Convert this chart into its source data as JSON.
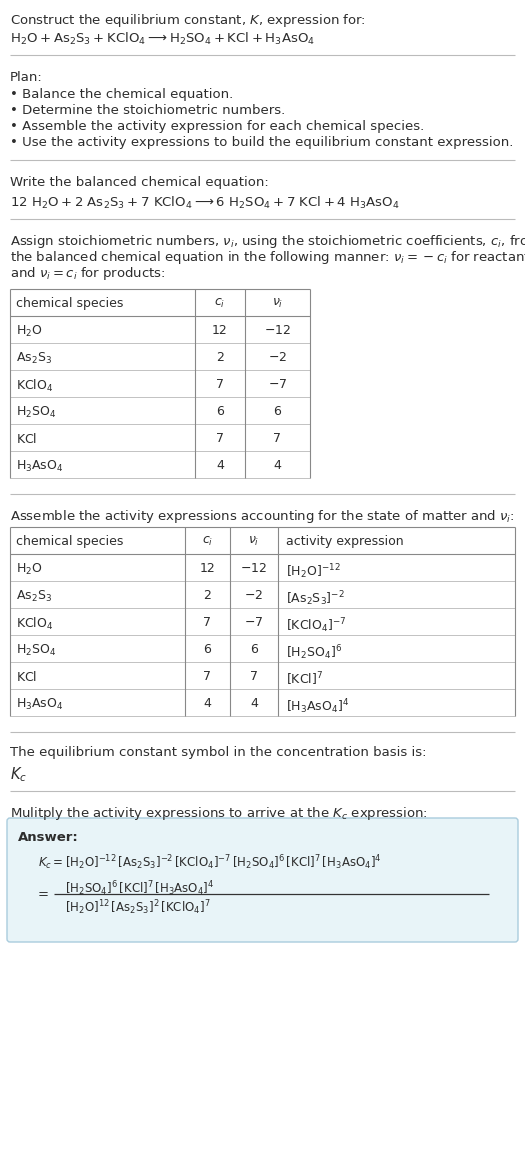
{
  "bg_color": "#ffffff",
  "text_color": "#2d2d2d",
  "title_line1": "Construct the equilibrium constant, $K$, expression for:",
  "title_line2": "$\\mathrm{H_2O + As_2S_3 + KClO_4 \\longrightarrow H_2SO_4 + KCl + H_3AsO_4}$",
  "plan_header": "Plan:",
  "plan_items": [
    "• Balance the chemical equation.",
    "• Determine the stoichiometric numbers.",
    "• Assemble the activity expression for each chemical species.",
    "• Use the activity expressions to build the equilibrium constant expression."
  ],
  "balanced_header": "Write the balanced chemical equation:",
  "balanced_eq": "$\\mathrm{12\\ H_2O + 2\\ As_2S_3 + 7\\ KClO_4 \\longrightarrow 6\\ H_2SO_4 + 7\\ KCl + 4\\ H_3AsO_4}$",
  "stoich_lines": [
    "Assign stoichiometric numbers, $\\nu_i$, using the stoichiometric coefficients, $c_i$, from",
    "the balanced chemical equation in the following manner: $\\nu_i = -c_i$ for reactants",
    "and $\\nu_i = c_i$ for products:"
  ],
  "table1_headers": [
    "chemical species",
    "$c_i$",
    "$\\nu_i$"
  ],
  "table1_rows": [
    [
      "$\\mathrm{H_2O}$",
      "12",
      "$-12$"
    ],
    [
      "$\\mathrm{As_2S_3}$",
      "2",
      "$-2$"
    ],
    [
      "$\\mathrm{KClO_4}$",
      "7",
      "$-7$"
    ],
    [
      "$\\mathrm{H_2SO_4}$",
      "6",
      "6"
    ],
    [
      "$\\mathrm{KCl}$",
      "7",
      "7"
    ],
    [
      "$\\mathrm{H_3AsO_4}$",
      "4",
      "4"
    ]
  ],
  "activity_header": "Assemble the activity expressions accounting for the state of matter and $\\nu_i$:",
  "table2_headers": [
    "chemical species",
    "$c_i$",
    "$\\nu_i$",
    "activity expression"
  ],
  "table2_rows": [
    [
      "$\\mathrm{H_2O}$",
      "12",
      "$-12$",
      "$[\\mathrm{H_2O}]^{-12}$"
    ],
    [
      "$\\mathrm{As_2S_3}$",
      "2",
      "$-2$",
      "$[\\mathrm{As_2S_3}]^{-2}$"
    ],
    [
      "$\\mathrm{KClO_4}$",
      "7",
      "$-7$",
      "$[\\mathrm{KClO_4}]^{-7}$"
    ],
    [
      "$\\mathrm{H_2SO_4}$",
      "6",
      "6",
      "$[\\mathrm{H_2SO_4}]^{6}$"
    ],
    [
      "$\\mathrm{KCl}$",
      "7",
      "7",
      "$[\\mathrm{KCl}]^{7}$"
    ],
    [
      "$\\mathrm{H_3AsO_4}$",
      "4",
      "4",
      "$[\\mathrm{H_3AsO_4}]^{4}$"
    ]
  ],
  "kc_header": "The equilibrium constant symbol in the concentration basis is:",
  "kc_symbol": "$K_c$",
  "multiply_header": "Mulitply the activity expressions to arrive at the $K_c$ expression:",
  "answer_label": "Answer:",
  "answer_line1": "$K_c = [\\mathrm{H_2O}]^{-12}\\,[\\mathrm{As_2S_3}]^{-2}\\,[\\mathrm{KClO_4}]^{-7}\\,[\\mathrm{H_2SO_4}]^{6}\\,[\\mathrm{KCl}]^{7}\\,[\\mathrm{H_3AsO_4}]^{4}$",
  "answer_eq_sign": "=",
  "answer_num": "$[\\mathrm{H_2SO_4}]^{6}\\,[\\mathrm{KCl}]^{7}\\,[\\mathrm{H_3AsO_4}]^{4}$",
  "answer_den": "$[\\mathrm{H_2O}]^{12}\\,[\\mathrm{As_2S_3}]^{2}\\,[\\mathrm{KClO_4}]^{7}$",
  "answer_box_color": "#e8f4f8",
  "answer_box_border": "#aaccdd",
  "sep_color": "#bbbbbb",
  "table_border_color": "#888888",
  "table_inner_color": "#aaaaaa",
  "font_size": 9.5,
  "font_size_table": 9.0
}
